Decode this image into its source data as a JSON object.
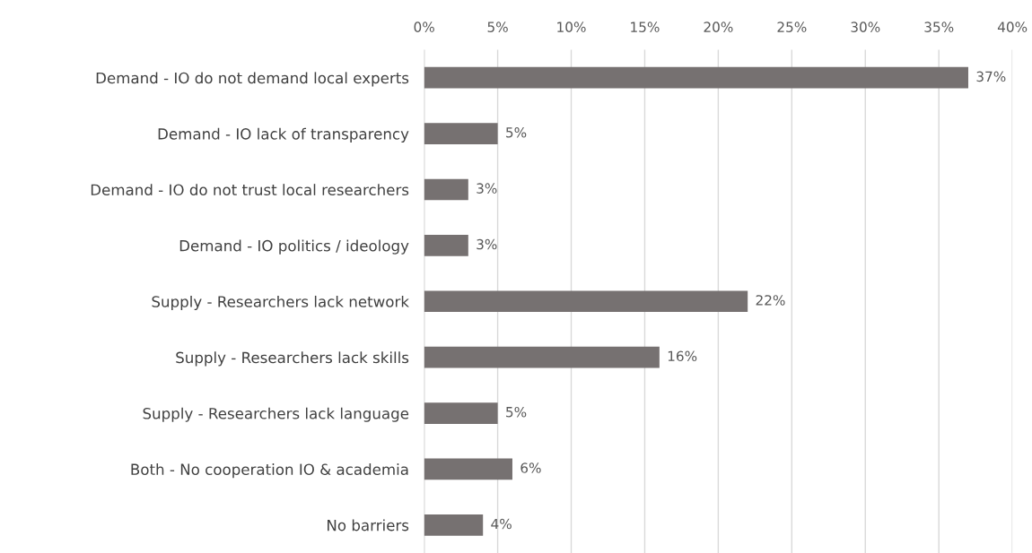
{
  "chart_data": {
    "type": "bar",
    "orientation": "horizontal",
    "categories": [
      "Demand - IO do not demand local experts",
      "Demand - IO lack of transparency",
      "Demand - IO do not trust local researchers",
      "Demand - IO politics / ideology",
      "Supply - Researchers lack network",
      "Supply - Researchers lack skills",
      "Supply - Researchers lack language",
      "Both - No cooperation IO & academia",
      "No barriers"
    ],
    "values": [
      37,
      5,
      3,
      3,
      22,
      16,
      5,
      6,
      4
    ],
    "color": "#767171",
    "xlim": [
      0,
      40
    ],
    "xticks": [
      {
        "value": 0,
        "label": "0%"
      },
      {
        "value": 5,
        "label": "5%"
      },
      {
        "value": 10,
        "label": "10%"
      },
      {
        "value": 15,
        "label": "15%"
      },
      {
        "value": 20,
        "label": "20%"
      },
      {
        "value": 25,
        "label": "25%"
      },
      {
        "value": 30,
        "label": "30%"
      },
      {
        "value": 35,
        "label": "35%"
      },
      {
        "value": 40,
        "label": "40%"
      }
    ],
    "value_labels": [
      "37%",
      "5%",
      "3%",
      "3%",
      "22%",
      "16%",
      "5%",
      "6%",
      "4%"
    ],
    "grid": "x",
    "legend": false
  }
}
